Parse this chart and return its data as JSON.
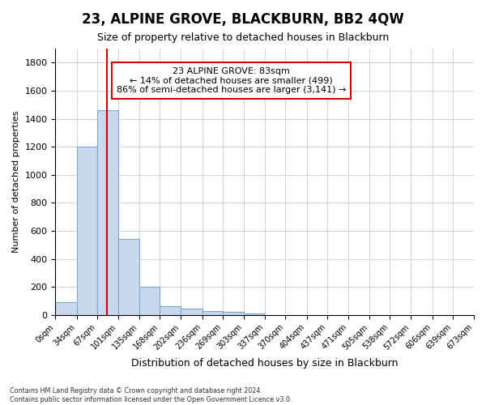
{
  "title": "23, ALPINE GROVE, BLACKBURN, BB2 4QW",
  "subtitle": "Size of property relative to detached houses in Blackburn",
  "xlabel": "Distribution of detached houses by size in Blackburn",
  "ylabel": "Number of detached properties",
  "bar_color": "#c8d8ee",
  "bar_edge_color": "#7aaad0",
  "grid_color": "#c8d4e8",
  "annotation_text": "23 ALPINE GROVE: 83sqm\n← 14% of detached houses are smaller (499)\n86% of semi-detached houses are larger (3,141) →",
  "annotation_box_color": "#ffffff",
  "annotation_border_color": "#cc0000",
  "vline_color": "#cc0000",
  "vline_x": 83,
  "bin_edges": [
    0,
    34,
    67,
    101,
    135,
    168,
    202,
    236,
    269,
    303,
    337,
    370,
    404,
    437,
    471,
    505,
    538,
    572,
    606,
    639,
    673
  ],
  "bin_counts": [
    90,
    1200,
    1460,
    540,
    200,
    65,
    48,
    30,
    25,
    10,
    0,
    0,
    0,
    0,
    0,
    0,
    0,
    0,
    0,
    0
  ],
  "ylim": [
    0,
    1900
  ],
  "yticks": [
    0,
    200,
    400,
    600,
    800,
    1000,
    1200,
    1400,
    1600,
    1800
  ],
  "footnote1": "Contains HM Land Registry data © Crown copyright and database right 2024.",
  "footnote2": "Contains public sector information licensed under the Open Government Licence v3.0.",
  "background_color": "#ffffff",
  "title_fontsize": 12,
  "subtitle_fontsize": 9
}
